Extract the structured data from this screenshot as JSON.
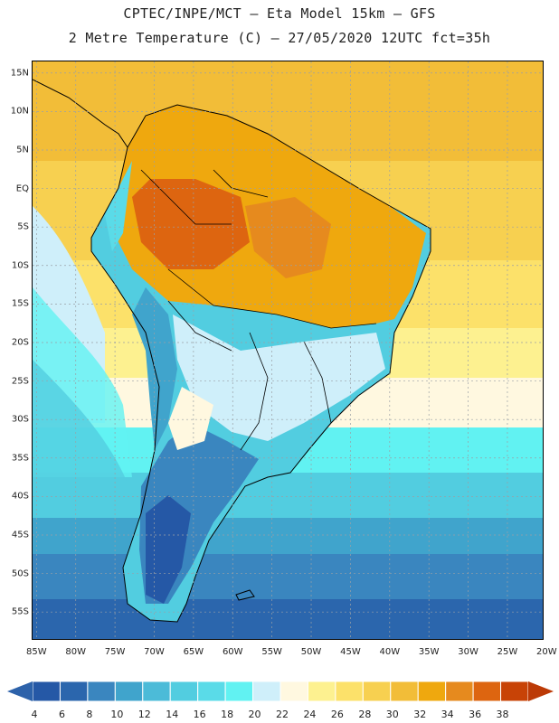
{
  "header": {
    "line1": "CPTEC/INPE/MCT –  Eta Model 15km – GFS",
    "line2": "2 Metre Temperature (C) – 27/05/2020 12UTC fct=35h"
  },
  "axes": {
    "lat_labels": [
      "15N",
      "10N",
      "5N",
      "EQ",
      "5S",
      "10S",
      "15S",
      "20S",
      "25S",
      "30S",
      "35S",
      "40S",
      "45S",
      "50S",
      "55S"
    ],
    "lat_values": [
      15,
      10,
      5,
      0,
      -5,
      -10,
      -15,
      -20,
      -25,
      -30,
      -35,
      -40,
      -45,
      -50,
      -55
    ],
    "lon_labels": [
      "85W",
      "80W",
      "75W",
      "70W",
      "65W",
      "60W",
      "55W",
      "50W",
      "45W",
      "40W",
      "35W",
      "30W",
      "25W",
      "20W"
    ],
    "lon_values": [
      -85,
      -80,
      -75,
      -70,
      -65,
      -60,
      -55,
      -50,
      -45,
      -40,
      -35,
      -30,
      -25,
      -20
    ],
    "lon_range": [
      -85.5,
      -20.5
    ],
    "lat_range": [
      -58.5,
      16.5
    ]
  },
  "colorbar": {
    "labels": [
      "4",
      "6",
      "8",
      "10",
      "12",
      "14",
      "16",
      "18",
      "20",
      "22",
      "24",
      "26",
      "28",
      "30",
      "32",
      "34",
      "36",
      "38"
    ],
    "colors": [
      "#2558a6",
      "#2b66ad",
      "#3a86bf",
      "#40a4cc",
      "#4cbbd8",
      "#52cde0",
      "#5adbe8",
      "#61f2f2",
      "#cfeffa",
      "#fff8e0",
      "#fdf190",
      "#fce16a",
      "#f7d050",
      "#f2bd38",
      "#efa80e",
      "#e68a1e",
      "#dd6510",
      "#c84306"
    ],
    "under_color": "#2d62aa",
    "over_color": "#bc3a06"
  },
  "icons": {
    "colorbar_left_arrow": "triangle-left-icon",
    "colorbar_right_arrow": "triangle-right-icon"
  }
}
